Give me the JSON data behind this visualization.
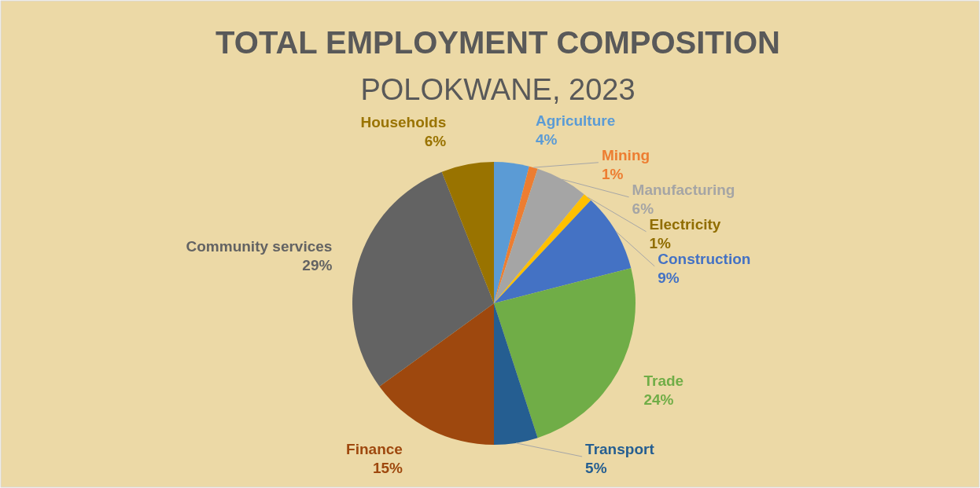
{
  "chart_data": {
    "type": "pie",
    "title": "TOTAL EMPLOYMENT COMPOSITION",
    "subtitle": "POLOKWANE, 2023",
    "categories": [
      "Agriculture",
      "Mining",
      "Manufacturing",
      "Electricity",
      "Construction",
      "Trade",
      "Transport",
      "Finance",
      "Community services",
      "Households"
    ],
    "values": [
      4,
      1,
      6,
      1,
      9,
      24,
      5,
      15,
      29,
      6
    ],
    "value_labels": [
      "4%",
      "1%",
      "6%",
      "1%",
      "9%",
      "24%",
      "5%",
      "15%",
      "29%",
      "6%"
    ],
    "colors": [
      "#5b9bd5",
      "#ed7d31",
      "#a5a5a5",
      "#ffc000",
      "#4472c4",
      "#70ad47",
      "#255e91",
      "#9e480e",
      "#636363",
      "#997300"
    ]
  }
}
